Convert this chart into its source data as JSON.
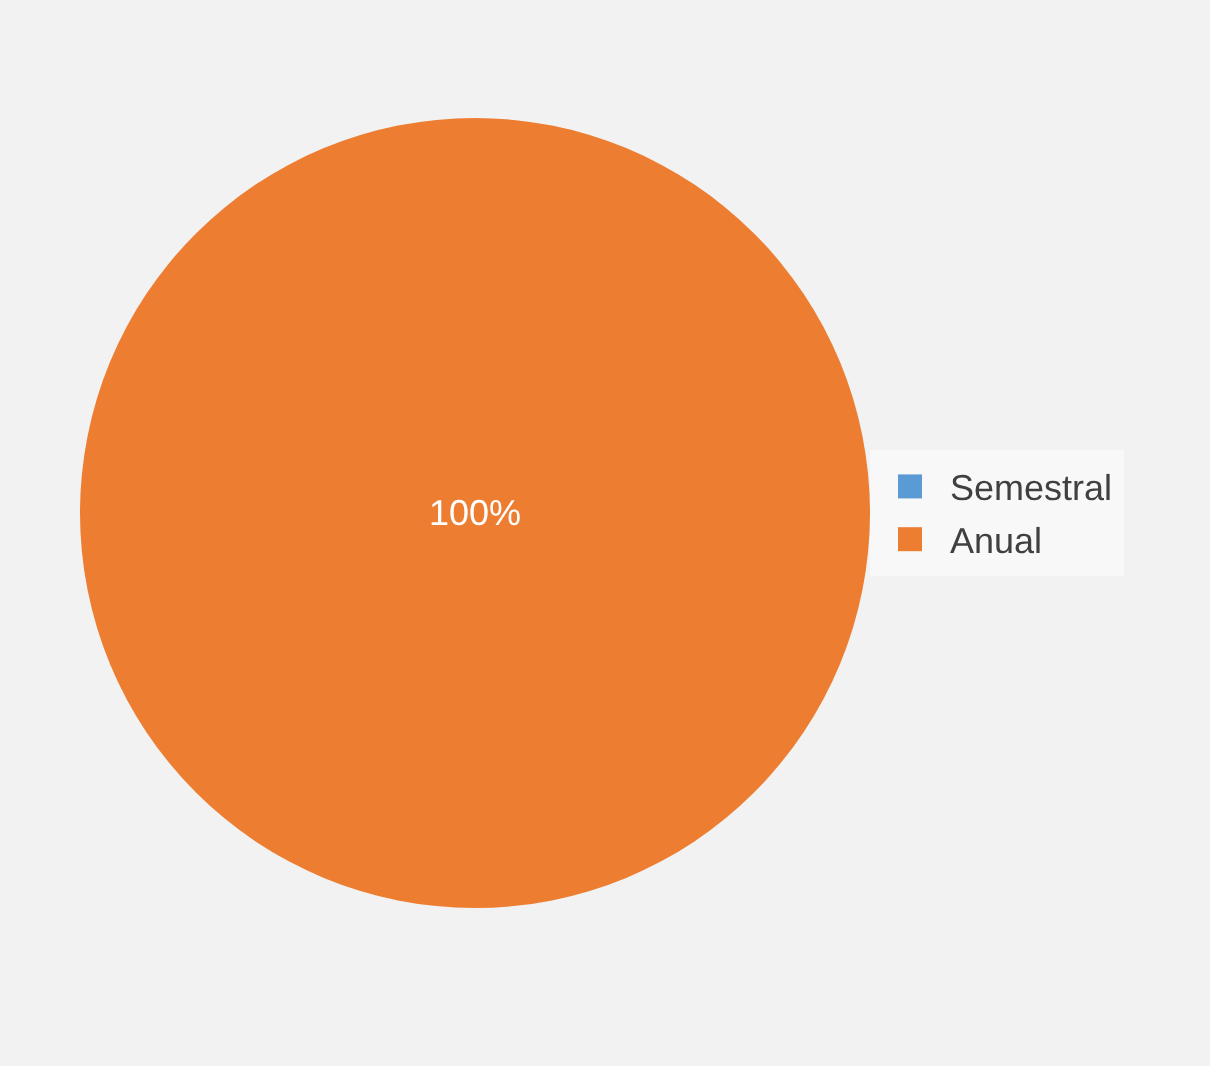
{
  "chart_data": {
    "type": "pie",
    "categories": [
      "Semestral",
      "Anual"
    ],
    "values": [
      0,
      100
    ],
    "colors": [
      "#5b9bd5",
      "#ed7d31"
    ],
    "value_labels": [
      null,
      "100%"
    ],
    "legend": "right"
  }
}
